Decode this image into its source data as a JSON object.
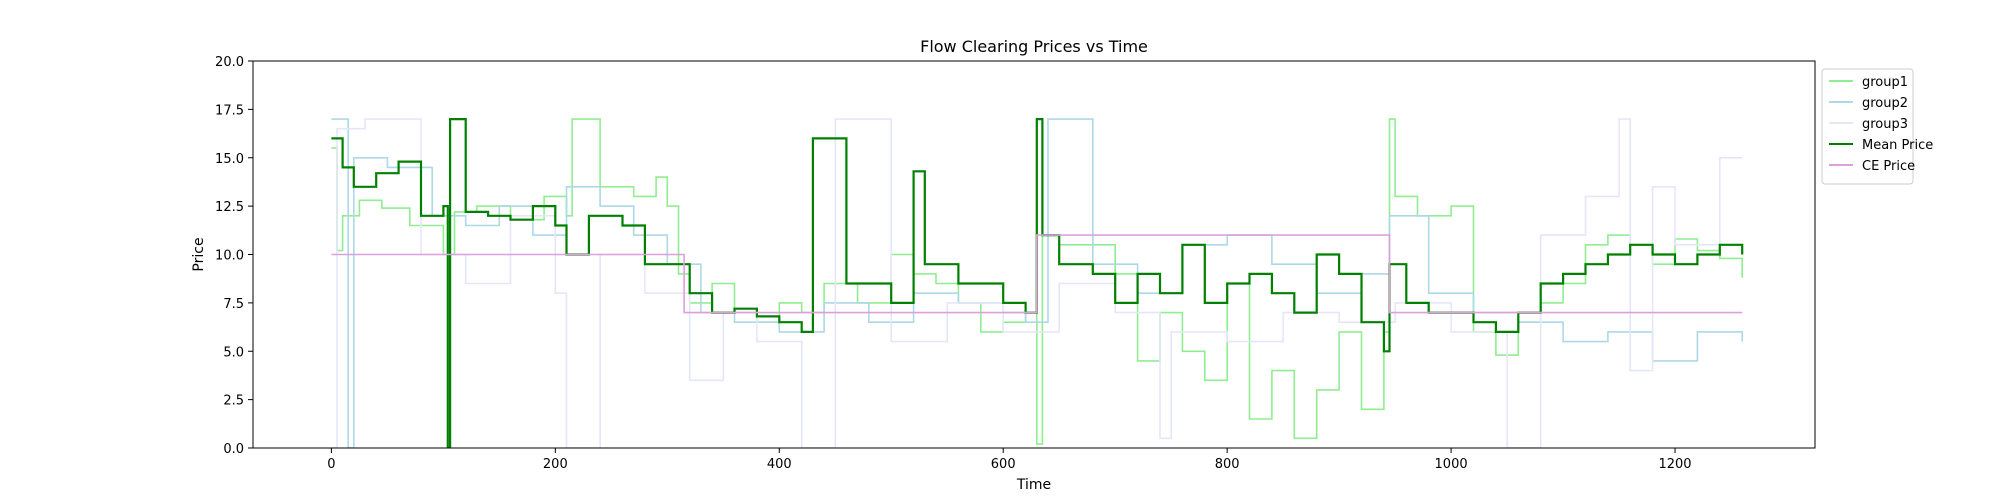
{
  "chart_data": {
    "type": "line",
    "title": "Flow Clearing Prices vs Time",
    "xlabel": "Time",
    "ylabel": "Price",
    "xlim": [
      -70,
      1325
    ],
    "ylim": [
      0,
      20
    ],
    "xticks": [
      0,
      200,
      400,
      600,
      800,
      1000,
      1200
    ],
    "yticks": [
      "0.0",
      "2.5",
      "5.0",
      "7.5",
      "10.0",
      "12.5",
      "15.0",
      "17.5",
      "20.0"
    ],
    "grid": false,
    "legend_position": "outside-top-right",
    "series": [
      {
        "name": "group1",
        "color": "#90ee90",
        "style": "step",
        "x": [
          0,
          5,
          10,
          25,
          45,
          70,
          100,
          110,
          130,
          160,
          190,
          210,
          215,
          240,
          270,
          290,
          300,
          310,
          320,
          340,
          360,
          380,
          400,
          420,
          440,
          470,
          500,
          520,
          540,
          560,
          580,
          600,
          620,
          630,
          635,
          650,
          700,
          720,
          740,
          760,
          780,
          800,
          820,
          840,
          860,
          880,
          900,
          920,
          940,
          945,
          950,
          970,
          1000,
          1020,
          1040,
          1060,
          1080,
          1100,
          1120,
          1140,
          1160,
          1180,
          1200,
          1220,
          1240,
          1260
        ],
        "values": [
          15.5,
          10.2,
          12.0,
          12.8,
          12.4,
          11.5,
          10.0,
          12.2,
          12.5,
          11.8,
          13.0,
          12.0,
          17.0,
          13.5,
          13.0,
          14.0,
          12.5,
          9.0,
          7.5,
          8.5,
          7.0,
          6.5,
          7.5,
          7.0,
          8.5,
          7.5,
          10.0,
          9.0,
          8.5,
          7.5,
          6.0,
          6.5,
          7.0,
          0.2,
          11.0,
          10.5,
          9.0,
          4.5,
          7.0,
          5.0,
          3.5,
          8.5,
          1.5,
          4.0,
          0.5,
          3.0,
          6.0,
          2.0,
          6.0,
          17.0,
          13.0,
          12.0,
          12.5,
          6.0,
          4.8,
          6.5,
          7.5,
          8.5,
          10.5,
          11.0,
          10.5,
          9.5,
          10.8,
          10.2,
          9.8,
          8.8
        ]
      },
      {
        "name": "group2",
        "color": "#add8e6",
        "style": "step",
        "x": [
          0,
          15,
          20,
          50,
          90,
          120,
          150,
          180,
          210,
          240,
          270,
          300,
          330,
          360,
          400,
          440,
          480,
          520,
          560,
          600,
          620,
          640,
          680,
          720,
          760,
          800,
          840,
          880,
          920,
          945,
          980,
          1020,
          1060,
          1100,
          1140,
          1180,
          1220,
          1260
        ],
        "values": [
          17.0,
          0.0,
          15.0,
          14.5,
          12.0,
          11.5,
          12.5,
          11.0,
          13.5,
          12.5,
          11.0,
          9.5,
          7.0,
          6.5,
          6.0,
          7.5,
          6.5,
          8.0,
          7.5,
          7.0,
          6.5,
          17.0,
          9.5,
          8.0,
          10.5,
          11.0,
          9.5,
          8.0,
          9.0,
          12.0,
          8.0,
          7.0,
          6.5,
          5.5,
          6.0,
          4.5,
          6.0,
          5.5
        ]
      },
      {
        "name": "group3",
        "color": "#e6e6fa",
        "style": "step",
        "x": [
          0,
          5,
          30,
          80,
          120,
          160,
          200,
          210,
          240,
          280,
          320,
          350,
          380,
          420,
          450,
          500,
          550,
          600,
          650,
          700,
          740,
          750,
          800,
          850,
          900,
          950,
          1000,
          1050,
          1080,
          1120,
          1150,
          1160,
          1180,
          1200,
          1240,
          1260
        ],
        "values": [
          0.0,
          16.5,
          17.0,
          10.0,
          8.5,
          12.0,
          8.0,
          0.0,
          10.0,
          8.0,
          3.5,
          7.0,
          5.5,
          0.0,
          17.0,
          5.5,
          7.5,
          6.0,
          8.5,
          7.0,
          0.5,
          6.0,
          5.5,
          7.0,
          6.5,
          7.5,
          6.0,
          0.0,
          11.0,
          13.0,
          17.0,
          4.0,
          13.5,
          10.5,
          15.0,
          15.0
        ]
      },
      {
        "name": "Mean Price",
        "color": "#008000",
        "style": "step",
        "x": [
          0,
          10,
          20,
          40,
          60,
          80,
          100,
          104,
          106,
          120,
          140,
          160,
          180,
          200,
          210,
          230,
          260,
          280,
          300,
          320,
          340,
          360,
          380,
          400,
          420,
          430,
          460,
          500,
          520,
          530,
          560,
          600,
          620,
          630,
          635,
          650,
          680,
          700,
          720,
          740,
          760,
          780,
          800,
          820,
          840,
          860,
          880,
          900,
          920,
          940,
          945,
          960,
          980,
          1000,
          1020,
          1040,
          1060,
          1080,
          1100,
          1120,
          1140,
          1160,
          1180,
          1200,
          1220,
          1240,
          1260
        ],
        "values": [
          16.0,
          14.5,
          13.5,
          14.2,
          14.8,
          12.0,
          12.5,
          0.0,
          17.0,
          12.2,
          12.0,
          11.8,
          12.5,
          11.5,
          10.0,
          12.0,
          11.5,
          9.5,
          9.5,
          8.0,
          7.0,
          7.2,
          6.8,
          6.5,
          6.0,
          16.0,
          8.5,
          7.5,
          14.3,
          9.5,
          8.5,
          7.5,
          7.0,
          17.0,
          11.0,
          9.5,
          9.0,
          7.5,
          9.0,
          8.0,
          10.5,
          7.5,
          8.5,
          9.0,
          8.0,
          7.0,
          10.0,
          9.0,
          6.5,
          5.0,
          9.5,
          7.5,
          7.0,
          7.0,
          6.5,
          6.0,
          7.0,
          8.5,
          9.0,
          9.5,
          10.0,
          10.5,
          10.0,
          9.5,
          10.0,
          10.5,
          10.0
        ]
      },
      {
        "name": "CE Price",
        "color": "#dda0dd",
        "style": "step",
        "x": [
          0,
          315,
          315,
          630,
          630,
          945,
          945,
          1260
        ],
        "values": [
          10.0,
          10.0,
          7.0,
          7.0,
          11.0,
          11.0,
          7.0,
          7.0
        ]
      }
    ]
  }
}
